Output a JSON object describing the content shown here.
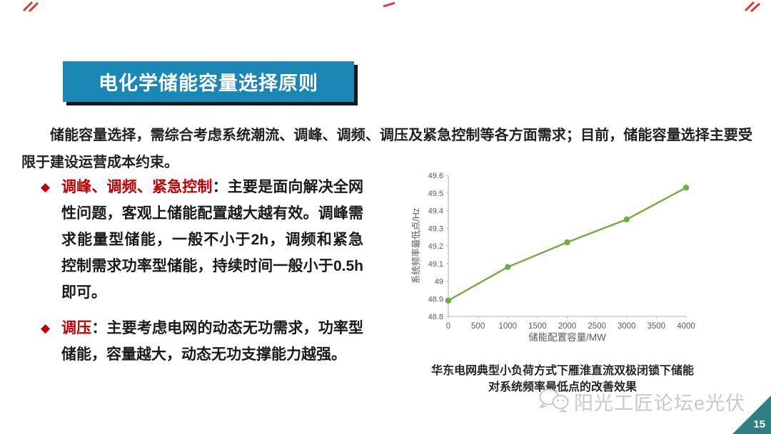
{
  "slide": {
    "title": "电化学储能容量选择原则",
    "intro": "储能容量选择，需综合考虑系统潮流、调峰、调频、调压及紧急控制等各方面需求；目前，储能容量选择主要受限于建设运营成本约束。",
    "bullets": [
      {
        "marker": "◆",
        "lead": "调峰、调频、紧急控制",
        "colon": "：",
        "text": "主要是面向解决全网性问题，客观上储能配置越大越有效。调峰需求能量型储能，一般不小于2h，调频和紧急控制需求功率型储能，持续时间一般小于0.5h即可。"
      },
      {
        "marker": "◆",
        "lead": "调压",
        "colon": "：",
        "text": "主要考虑电网的动态无功需求，功率型储能，容量越大，动态无功支撑能力越强。"
      }
    ],
    "watermark_text": "阳光工匠论坛e光伏",
    "page_number": "15",
    "colors": {
      "banner_bg": "#1a87b5",
      "banner_shadow": "#12171f",
      "accent_red": "#c00000",
      "annotation_red": "#d93a35",
      "corner_teal": "#2d7f80",
      "watermark_gray": "#c9c9c9"
    }
  },
  "chart_data": {
    "type": "line",
    "x": [
      0,
      1000,
      2000,
      3000,
      4000
    ],
    "series": [
      {
        "name": "系统频率最低点",
        "values": [
          48.89,
          49.08,
          49.22,
          49.35,
          49.53
        ]
      }
    ],
    "xlabel": "储能配置容量/MW",
    "ylabel": "系统频率最低点/Hz",
    "xlim": [
      0,
      4000
    ],
    "ylim": [
      48.8,
      49.6
    ],
    "xticks": [
      0,
      500,
      1000,
      1500,
      2000,
      2500,
      3000,
      3500,
      4000
    ],
    "yticks": [
      48.8,
      48.9,
      49,
      49.1,
      49.2,
      49.3,
      49.4,
      49.5,
      49.6
    ],
    "grid": false,
    "legend": "none",
    "line_color": "#70ad47",
    "marker": "circle",
    "axis_color": "#bfbfbf",
    "tick_label_color": "#595959",
    "caption_lines": [
      "华东电网典型小负荷方式下雁淮直流双极闭锁下储能",
      "对系统频率最低点的改善效果"
    ]
  }
}
